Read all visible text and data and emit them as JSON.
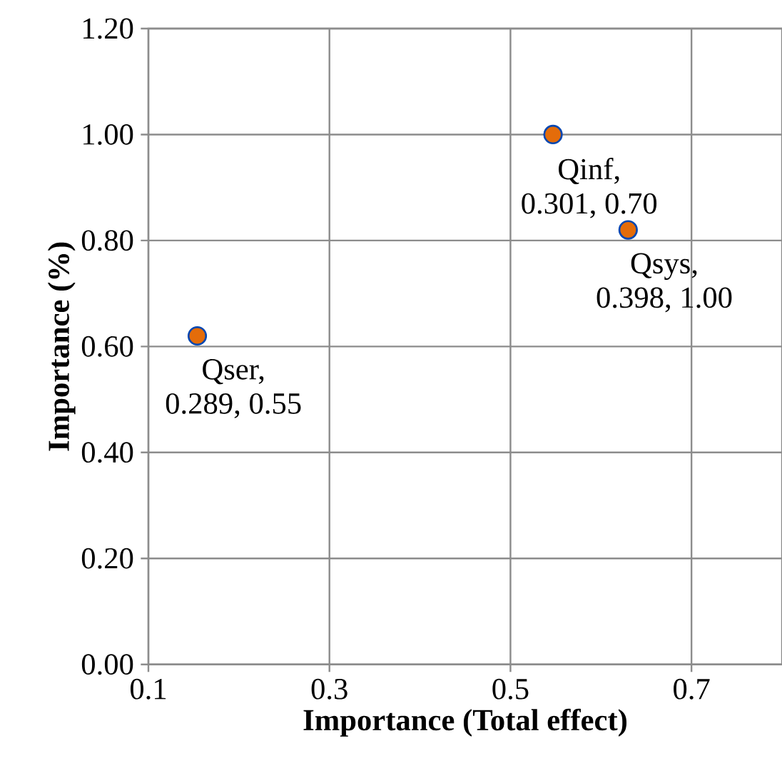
{
  "chart_data": {
    "type": "scatter",
    "xlabel": "Importance (Total effect)",
    "ylabel": "Importance (%)",
    "x": [
      0.154,
      0.547,
      0.63
    ],
    "series": [
      {
        "color": "#e46c0a",
        "values": [
          0.62,
          1.0,
          0.82
        ]
      }
    ],
    "annotations": [
      {
        "text": "Qser, 0.289, 0.55",
        "x": 0.154,
        "y": 0.62
      },
      {
        "text": "Qinf, 0.301, 0.70",
        "x": 0.547,
        "y": 1.0
      },
      {
        "text": "Qsys, 0.398, 1.00",
        "x": 0.63,
        "y": 0.82
      }
    ],
    "xlim": [
      0.1,
      0.8
    ],
    "xticks": [
      0.1,
      0.3,
      0.5,
      0.7
    ],
    "ylim": [
      0,
      1.2
    ],
    "yticks": [
      {
        "value": 0,
        "label": "0.00"
      },
      {
        "value": 0.2,
        "label": "0.20"
      },
      {
        "value": 0.4,
        "label": "0.40"
      },
      {
        "value": 0.6,
        "label": "0.60"
      },
      {
        "value": 0.8,
        "label": "0.80"
      },
      {
        "value": 1.0,
        "label": "1.00"
      },
      {
        "value": 1.2,
        "label": "1.20"
      }
    ],
    "grid": true
  }
}
